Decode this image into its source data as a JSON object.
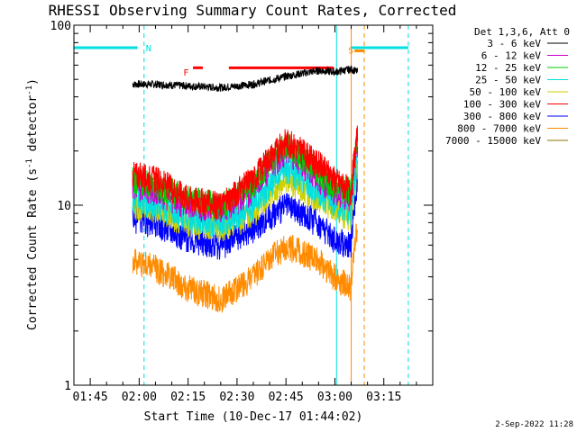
{
  "chart_data": {
    "type": "line",
    "title": "RHESSI Observing Summary Count Rates, Corrected",
    "xlabel": "Start Time (10-Dec-17 01:44:02)",
    "ylabel": "Corrected Count Rate (s",
    "ylabel_sup1": "-1",
    "ylabel_mid": " detector",
    "ylabel_sup2": "-1",
    "ylabel_end": ")",
    "y_scale": "log",
    "ylim": [
      1,
      100
    ],
    "xlim_minutes": [
      -5,
      105
    ],
    "x_ticks": [
      {
        "label": "01:45",
        "minute": 0
      },
      {
        "label": "02:00",
        "minute": 15
      },
      {
        "label": "02:15",
        "minute": 30
      },
      {
        "label": "02:30",
        "minute": 45
      },
      {
        "label": "02:45",
        "minute": 60
      },
      {
        "label": "03:00",
        "minute": 75
      },
      {
        "label": "03:15",
        "minute": 90
      }
    ],
    "y_ticks": [
      {
        "label": "1",
        "value": 1
      },
      {
        "label": "10",
        "value": 10
      },
      {
        "label": "100",
        "value": 100
      }
    ],
    "legend_title": "Det 1,3,6, Att 0",
    "legend_placement": "right",
    "timestamp": "2-Sep-2022 11:28",
    "series": [
      {
        "name": "3 - 6 keV",
        "color": "#000000",
        "x": [
          13,
          20,
          30,
          40,
          50,
          60,
          70,
          75,
          80,
          82
        ],
        "y": [
          47,
          47,
          46,
          45,
          47,
          52,
          56,
          55,
          57,
          55
        ]
      },
      {
        "name": "6 - 12 keV",
        "color": "#cc00cc",
        "x": [
          13,
          20,
          30,
          40,
          50,
          60,
          70,
          75,
          80,
          82
        ],
        "y": [
          13,
          12,
          10,
          9.5,
          12,
          20,
          14,
          12,
          11,
          22
        ]
      },
      {
        "name": "12 - 25 keV",
        "color": "#00cc00",
        "x": [
          13,
          20,
          30,
          40,
          50,
          60,
          70,
          75,
          80,
          82
        ],
        "y": [
          14,
          13,
          11,
          10,
          13,
          22,
          15,
          13,
          12,
          24
        ]
      },
      {
        "name": "25 - 50 keV",
        "color": "#00e0e0",
        "x": [
          13,
          20,
          30,
          40,
          50,
          60,
          70,
          75,
          80,
          82
        ],
        "y": [
          11,
          10,
          8.5,
          8,
          10,
          16,
          12,
          10,
          9,
          18
        ]
      },
      {
        "name": "50 - 100 keV",
        "color": "#d0d000",
        "x": [
          13,
          20,
          30,
          40,
          50,
          60,
          70,
          75,
          80,
          82
        ],
        "y": [
          10,
          9.5,
          8,
          7.5,
          9,
          14,
          11,
          9.5,
          8.5,
          16
        ]
      },
      {
        "name": "100 - 300 keV",
        "color": "#ff0000",
        "x": [
          13,
          20,
          30,
          40,
          50,
          60,
          70,
          75,
          80,
          82
        ],
        "y": [
          15,
          14,
          11,
          10,
          14,
          23,
          17,
          14,
          12,
          25
        ]
      },
      {
        "name": "300 - 800 keV",
        "color": "#0000ff",
        "x": [
          13,
          20,
          30,
          40,
          50,
          60,
          70,
          75,
          80,
          82
        ],
        "y": [
          8.5,
          8,
          6.5,
          6,
          7.5,
          10,
          8,
          6.5,
          6,
          14
        ]
      },
      {
        "name": "800 - 7000 keV",
        "color": "#ff8c00",
        "x": [
          13,
          20,
          30,
          40,
          50,
          60,
          70,
          75,
          80,
          82
        ],
        "y": [
          5,
          4.5,
          3.5,
          3,
          4,
          6,
          5,
          4,
          3.5,
          8
        ]
      },
      {
        "name": "7000 - 15000 keV",
        "color": "#8b7500",
        "x": [],
        "y": []
      }
    ],
    "annotations": [
      {
        "label": "N",
        "color": "#00e0e0",
        "x": 16.5
      },
      {
        "label": "F",
        "color": "#ff0000",
        "x": 28
      },
      {
        "label": "S",
        "color": "#ff8c00",
        "x": 78.5
      }
    ],
    "flag_bars": [
      {
        "color": "#00e0e0",
        "x0": -5,
        "x1": 14.5,
        "y": 75
      },
      {
        "color": "#00e0e0",
        "x0": 80,
        "x1": 97.5,
        "y": 75
      },
      {
        "color": "#ff0000",
        "x0": 31.5,
        "x1": 34.5,
        "y": 58
      },
      {
        "color": "#ff0000",
        "x0": 42.5,
        "x1": 74.5,
        "y": 58
      },
      {
        "color": "#ff8c00",
        "x0": 81,
        "x1": 84,
        "y": 72
      }
    ],
    "vlines": [
      {
        "color": "#00e0e0",
        "style": "solid",
        "x": -5
      },
      {
        "color": "#00e0e0",
        "style": "dashed",
        "x": 16.5
      },
      {
        "color": "#00e0e0",
        "style": "solid",
        "x": 75.5
      },
      {
        "color": "#ff8c00",
        "style": "solid",
        "x": 80
      },
      {
        "color": "#ff8c00",
        "style": "dashed",
        "x": 84
      },
      {
        "color": "#00e0e0",
        "style": "dashed",
        "x": 97.5
      }
    ]
  }
}
